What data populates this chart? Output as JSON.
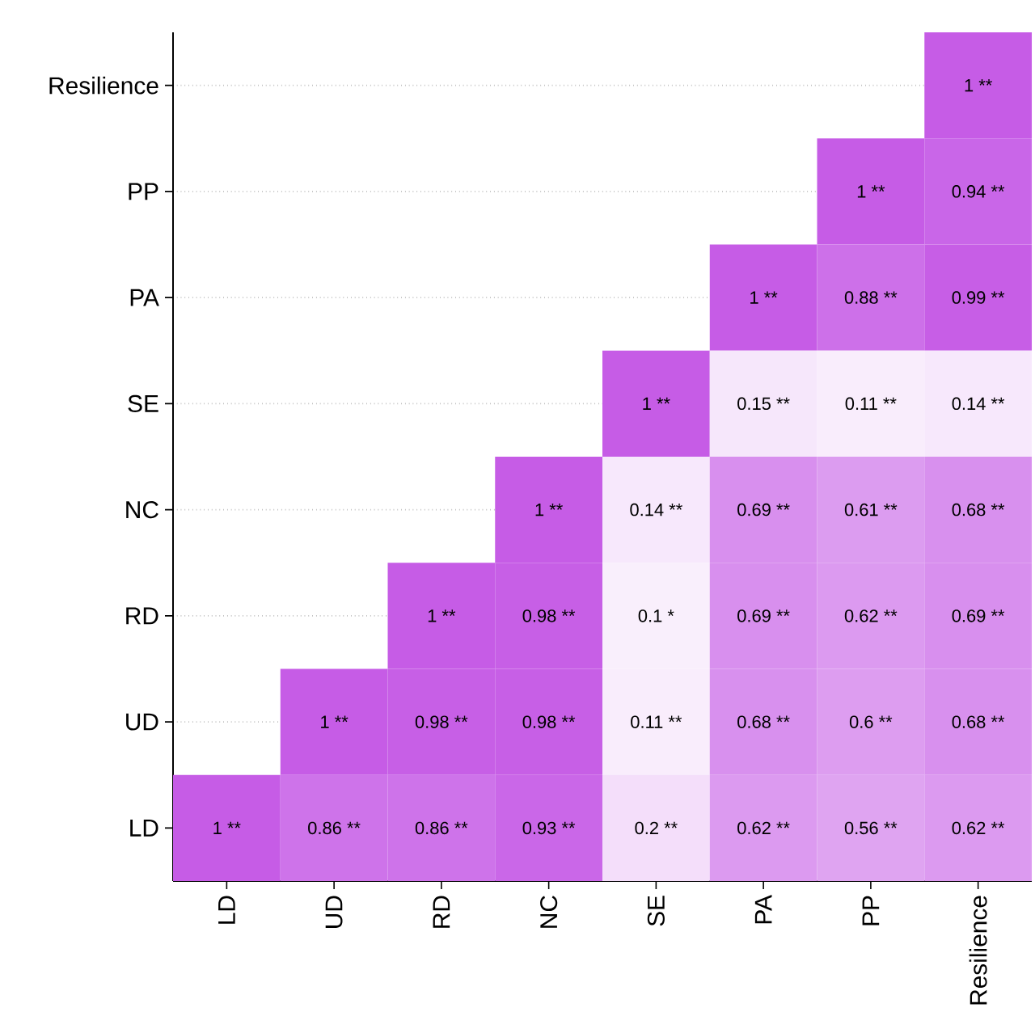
{
  "chart_data": {
    "type": "heatmap",
    "grid": "y",
    "categories": [
      "LD",
      "UD",
      "RD",
      "NC",
      "SE",
      "PA",
      "PP",
      "Resilience"
    ],
    "y_categories": [
      "Resilience",
      "PP",
      "PA",
      "SE",
      "NC",
      "RD",
      "UD",
      "LD"
    ],
    "cells": [
      [
        null,
        null,
        null,
        null,
        null,
        null,
        null,
        1
      ],
      [
        null,
        null,
        null,
        null,
        null,
        null,
        1,
        0.94
      ],
      [
        null,
        null,
        null,
        null,
        null,
        1,
        0.88,
        0.99
      ],
      [
        null,
        null,
        null,
        null,
        1,
        0.15,
        0.11,
        0.14
      ],
      [
        null,
        null,
        null,
        1,
        0.14,
        0.69,
        0.61,
        0.68
      ],
      [
        null,
        null,
        1,
        0.98,
        0.1,
        0.69,
        0.62,
        0.69
      ],
      [
        null,
        1,
        0.98,
        0.98,
        0.11,
        0.68,
        0.6,
        0.68
      ],
      [
        1,
        0.86,
        0.86,
        0.93,
        0.2,
        0.62,
        0.56,
        0.62
      ]
    ],
    "cell_labels": [
      [
        null,
        null,
        null,
        null,
        null,
        null,
        null,
        "1 **"
      ],
      [
        null,
        null,
        null,
        null,
        null,
        null,
        "1 **",
        "0.94 **"
      ],
      [
        null,
        null,
        null,
        null,
        null,
        "1 **",
        "0.88 **",
        "0.99 **"
      ],
      [
        null,
        null,
        null,
        null,
        "1 **",
        "0.15 **",
        "0.11 **",
        "0.14 **"
      ],
      [
        null,
        null,
        null,
        "1 **",
        "0.14 **",
        "0.69 **",
        "0.61 **",
        "0.68 **"
      ],
      [
        null,
        null,
        "1 **",
        "0.98 **",
        "0.1 *",
        "0.69 **",
        "0.62 **",
        "0.69 **"
      ],
      [
        null,
        "1 **",
        "0.98 **",
        "0.98 **",
        "0.11 **",
        "0.68 **",
        "0.6 **",
        "0.68 **"
      ],
      [
        "1 **",
        "0.86 **",
        "0.86 **",
        "0.93 **",
        "0.2 **",
        "0.62 **",
        "0.56 **",
        "0.62 **"
      ]
    ]
  }
}
